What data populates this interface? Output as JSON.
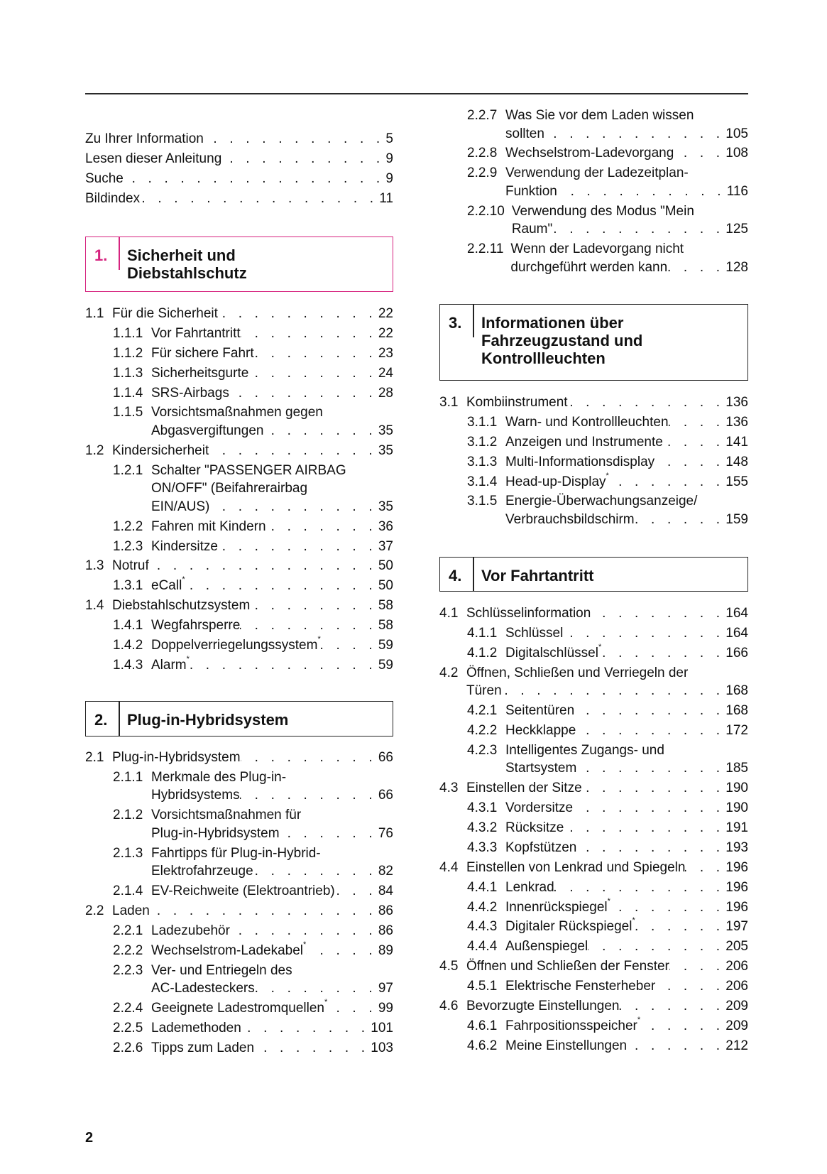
{
  "page_number": "2",
  "accent_color": "#d6237f",
  "columns": [
    {
      "blocks": [
        {
          "type": "list",
          "entries": [
            {
              "num": "",
              "level": 1,
              "lines": [
                "Zu Ihrer Information"
              ],
              "page": "5"
            },
            {
              "num": "",
              "level": 1,
              "lines": [
                "Lesen dieser Anleitung"
              ],
              "page": "9"
            },
            {
              "num": "",
              "level": 1,
              "lines": [
                "Suche"
              ],
              "page": "9"
            },
            {
              "num": "",
              "level": 1,
              "lines": [
                "Bildindex"
              ],
              "page": "11"
            }
          ]
        },
        {
          "type": "chapter",
          "num": "1.",
          "accent": true,
          "title_lines": [
            "Sicherheit und",
            "Diebstahlschutz"
          ]
        },
        {
          "type": "list",
          "entries": [
            {
              "num": "1.1",
              "level": 1,
              "lines": [
                "Für die Sicherheit"
              ],
              "page": "22"
            },
            {
              "num": "1.1.1",
              "level": 2,
              "lines": [
                "Vor Fahrtantritt"
              ],
              "page": "22"
            },
            {
              "num": "1.1.2",
              "level": 2,
              "lines": [
                "Für sichere Fahrt"
              ],
              "page": "23"
            },
            {
              "num": "1.1.3",
              "level": 2,
              "lines": [
                "Sicherheitsgurte"
              ],
              "page": "24"
            },
            {
              "num": "1.1.4",
              "level": 2,
              "lines": [
                "SRS-Airbags"
              ],
              "page": "28"
            },
            {
              "num": "1.1.5",
              "level": 2,
              "lines": [
                "Vorsichtsmaßnahmen gegen",
                "Abgasvergiftungen"
              ],
              "page": "35"
            },
            {
              "num": "1.2",
              "level": 1,
              "lines": [
                "Kindersicherheit"
              ],
              "page": "35"
            },
            {
              "num": "1.2.1",
              "level": 2,
              "lines": [
                "Schalter \"PASSENGER AIRBAG",
                "ON/OFF\" (Beifahrerairbag",
                "EIN/AUS)"
              ],
              "page": "35"
            },
            {
              "num": "1.2.2",
              "level": 2,
              "lines": [
                "Fahren mit Kindern"
              ],
              "page": "36"
            },
            {
              "num": "1.2.3",
              "level": 2,
              "lines": [
                "Kindersitze"
              ],
              "page": "37"
            },
            {
              "num": "1.3",
              "level": 1,
              "lines": [
                "Notruf"
              ],
              "page": "50"
            },
            {
              "num": "1.3.1",
              "level": 2,
              "lines": [
                "eCall"
              ],
              "page": "50",
              "star": true
            },
            {
              "num": "1.4",
              "level": 1,
              "lines": [
                "Diebstahlschutzsystem"
              ],
              "page": "58"
            },
            {
              "num": "1.4.1",
              "level": 2,
              "lines": [
                "Wegfahrsperre"
              ],
              "page": "58"
            },
            {
              "num": "1.4.2",
              "level": 2,
              "lines": [
                "Doppelverriegelungssystem"
              ],
              "page": "59",
              "star": true
            },
            {
              "num": "1.4.3",
              "level": 2,
              "lines": [
                "Alarm"
              ],
              "page": "59",
              "star": true
            }
          ]
        },
        {
          "type": "chapter",
          "num": "2.",
          "accent": false,
          "title_lines": [
            "Plug-in-Hybridsystem"
          ]
        },
        {
          "type": "list",
          "entries": [
            {
              "num": "2.1",
              "level": 1,
              "lines": [
                "Plug-in-Hybridsystem"
              ],
              "page": "66"
            },
            {
              "num": "2.1.1",
              "level": 2,
              "lines": [
                "Merkmale des Plug-in-",
                "Hybridsystems"
              ],
              "page": "66"
            },
            {
              "num": "2.1.2",
              "level": 2,
              "lines": [
                "Vorsichtsmaßnahmen für",
                "Plug-in-Hybridsystem"
              ],
              "page": "76"
            },
            {
              "num": "2.1.3",
              "level": 2,
              "lines": [
                "Fahrtipps für Plug-in-Hybrid-",
                "Elektrofahrzeuge"
              ],
              "page": "82"
            },
            {
              "num": "2.1.4",
              "level": 2,
              "lines": [
                "EV-Reichweite (Elektroantrieb)"
              ],
              "page": "84"
            },
            {
              "num": "2.2",
              "level": 1,
              "lines": [
                "Laden"
              ],
              "page": "86"
            },
            {
              "num": "2.2.1",
              "level": 2,
              "lines": [
                "Ladezubehör"
              ],
              "page": "86"
            },
            {
              "num": "2.2.2",
              "level": 2,
              "lines": [
                "Wechselstrom-Ladekabel"
              ],
              "page": "89",
              "star": true
            },
            {
              "num": "2.2.3",
              "level": 2,
              "lines": [
                "Ver- und Entriegeln des",
                "AC-Ladesteckers"
              ],
              "page": "97"
            },
            {
              "num": "2.2.4",
              "level": 2,
              "lines": [
                "Geeignete Ladestromquellen"
              ],
              "page": "99",
              "star": true
            },
            {
              "num": "2.2.5",
              "level": 2,
              "lines": [
                "Lademethoden"
              ],
              "page": "101"
            },
            {
              "num": "2.2.6",
              "level": 2,
              "lines": [
                "Tipps zum Laden"
              ],
              "page": "103"
            }
          ]
        }
      ]
    },
    {
      "blocks": [
        {
          "type": "list",
          "entries": [
            {
              "num": "2.2.7",
              "level": 2,
              "lines": [
                "Was Sie vor dem Laden wissen",
                "sollten"
              ],
              "page": "105"
            },
            {
              "num": "2.2.8",
              "level": 2,
              "lines": [
                "Wechselstrom-Ladevorgang"
              ],
              "page": "108"
            },
            {
              "num": "2.2.9",
              "level": 2,
              "lines": [
                "Verwendung der Ladezeitplan-",
                "Funktion"
              ],
              "page": "116"
            },
            {
              "num": "2.2.10",
              "level": 2,
              "lines": [
                "Verwendung des Modus \"Mein",
                "Raum\""
              ],
              "page": "125"
            },
            {
              "num": "2.2.11",
              "level": 2,
              "lines": [
                "Wenn der Ladevorgang nicht",
                "durchgeführt werden kann"
              ],
              "page": "128"
            }
          ]
        },
        {
          "type": "chapter",
          "num": "3.",
          "accent": false,
          "title_lines": [
            "Informationen über",
            "Fahrzeugzustand und",
            "Kontrollleuchten"
          ]
        },
        {
          "type": "list",
          "entries": [
            {
              "num": "3.1",
              "level": 1,
              "lines": [
                "Kombiinstrument"
              ],
              "page": "136"
            },
            {
              "num": "3.1.1",
              "level": 2,
              "lines": [
                "Warn- und Kontrollleuchten"
              ],
              "page": "136"
            },
            {
              "num": "3.1.2",
              "level": 2,
              "lines": [
                "Anzeigen und Instrumente"
              ],
              "page": "141"
            },
            {
              "num": "3.1.3",
              "level": 2,
              "lines": [
                "Multi-Informationsdisplay"
              ],
              "page": "148"
            },
            {
              "num": "3.1.4",
              "level": 2,
              "lines": [
                "Head-up-Display"
              ],
              "page": "155",
              "star": true
            },
            {
              "num": "3.1.5",
              "level": 2,
              "lines": [
                "Energie-Überwachungsanzeige/",
                "Verbrauchsbildschirm"
              ],
              "page": "159"
            }
          ]
        },
        {
          "type": "chapter",
          "num": "4.",
          "accent": false,
          "title_lines": [
            "Vor Fahrtantritt"
          ]
        },
        {
          "type": "list",
          "entries": [
            {
              "num": "4.1",
              "level": 1,
              "lines": [
                "Schlüsselinformation"
              ],
              "page": "164"
            },
            {
              "num": "4.1.1",
              "level": 2,
              "lines": [
                "Schlüssel"
              ],
              "page": "164"
            },
            {
              "num": "4.1.2",
              "level": 2,
              "lines": [
                "Digitalschlüssel"
              ],
              "page": "166",
              "star": true
            },
            {
              "num": "4.2",
              "level": 1,
              "lines": [
                "Öffnen, Schließen und Verriegeln der",
                "Türen"
              ],
              "page": "168"
            },
            {
              "num": "4.2.1",
              "level": 2,
              "lines": [
                "Seitentüren"
              ],
              "page": "168"
            },
            {
              "num": "4.2.2",
              "level": 2,
              "lines": [
                "Heckklappe"
              ],
              "page": "172"
            },
            {
              "num": "4.2.3",
              "level": 2,
              "lines": [
                "Intelligentes Zugangs- und",
                "Startsystem"
              ],
              "page": "185"
            },
            {
              "num": "4.3",
              "level": 1,
              "lines": [
                "Einstellen der Sitze"
              ],
              "page": "190"
            },
            {
              "num": "4.3.1",
              "level": 2,
              "lines": [
                "Vordersitze"
              ],
              "page": "190"
            },
            {
              "num": "4.3.2",
              "level": 2,
              "lines": [
                "Rücksitze"
              ],
              "page": "191"
            },
            {
              "num": "4.3.3",
              "level": 2,
              "lines": [
                "Kopfstützen"
              ],
              "page": "193"
            },
            {
              "num": "4.4",
              "level": 1,
              "lines": [
                "Einstellen von Lenkrad und Spiegeln"
              ],
              "page": "196"
            },
            {
              "num": "4.4.1",
              "level": 2,
              "lines": [
                "Lenkrad"
              ],
              "page": "196"
            },
            {
              "num": "4.4.2",
              "level": 2,
              "lines": [
                "Innenrückspiegel"
              ],
              "page": "196",
              "star": true
            },
            {
              "num": "4.4.3",
              "level": 2,
              "lines": [
                "Digitaler Rückspiegel"
              ],
              "page": "197",
              "star": true
            },
            {
              "num": "4.4.4",
              "level": 2,
              "lines": [
                "Außenspiegel"
              ],
              "page": "205"
            },
            {
              "num": "4.5",
              "level": 1,
              "lines": [
                "Öffnen und Schließen der Fenster"
              ],
              "page": "206"
            },
            {
              "num": "4.5.1",
              "level": 2,
              "lines": [
                "Elektrische Fensterheber"
              ],
              "page": "206"
            },
            {
              "num": "4.6",
              "level": 1,
              "lines": [
                "Bevorzugte Einstellungen"
              ],
              "page": "209"
            },
            {
              "num": "4.6.1",
              "level": 2,
              "lines": [
                "Fahrpositionsspeicher"
              ],
              "page": "209",
              "star": true
            },
            {
              "num": "4.6.2",
              "level": 2,
              "lines": [
                "Meine Einstellungen"
              ],
              "page": "212"
            }
          ]
        }
      ]
    }
  ]
}
